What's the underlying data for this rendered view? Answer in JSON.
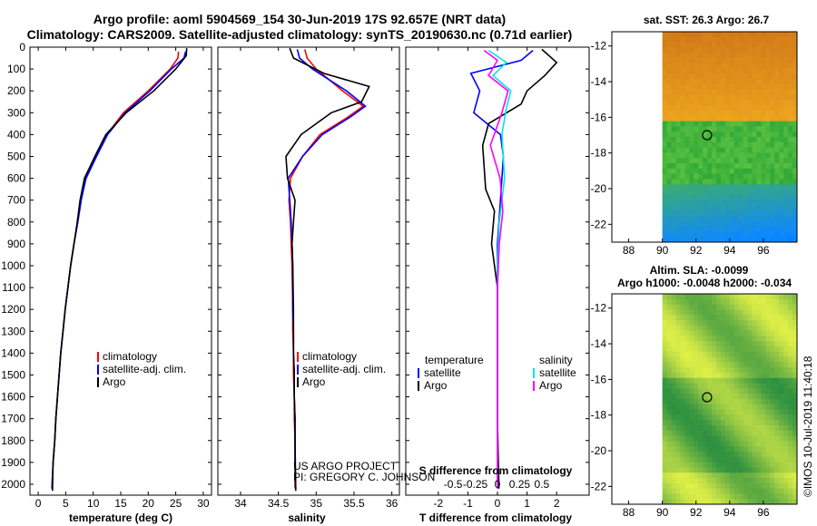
{
  "header": {
    "title_line1": "Argo profile: aoml 5904569_154 30-Jun-2019 17S 92.657E (NRT data)",
    "title_line2": "Climatology: CARS2009. Satellite-adjusted climatology: synTS_20190630.nc (0.71d earlier)"
  },
  "colors": {
    "climatology": "#ff0000",
    "satellite": "#0000ff",
    "argo": "#000000",
    "sal_satellite": "#00e5e5",
    "sal_argo": "#ff00ff"
  },
  "chart_data": [
    {
      "type": "line",
      "name": "temperature",
      "xlabel": "temperature (deg C)",
      "xlim": [
        -1.5,
        31.5
      ],
      "ylim": [
        0,
        2050
      ],
      "xticks": [
        0,
        5,
        10,
        15,
        20,
        25,
        30
      ],
      "yticks": [
        0,
        100,
        200,
        300,
        400,
        500,
        600,
        700,
        800,
        900,
        1000,
        1100,
        1200,
        1300,
        1400,
        1500,
        1600,
        1700,
        1800,
        1900,
        2000
      ],
      "y_reversed": true,
      "legend": [
        "climatology",
        "satellite-adj. clim.",
        "Argo"
      ],
      "series": [
        {
          "name": "climatology",
          "color": "#ff0000",
          "x": [
            25.5,
            25.4,
            24.0,
            20.0,
            15.5,
            12.5,
            10.5,
            8.6,
            7.8,
            7.2,
            6.5,
            5.9,
            5.4,
            4.9,
            4.5,
            4.1,
            3.8,
            3.5,
            3.2,
            3.0,
            2.7,
            2.5
          ],
          "y": [
            20,
            50,
            100,
            200,
            300,
            400,
            500,
            600,
            700,
            800,
            900,
            1000,
            1100,
            1200,
            1300,
            1400,
            1500,
            1600,
            1700,
            1800,
            1900,
            2020
          ]
        },
        {
          "name": "satellite-adj. clim.",
          "color": "#0000ff",
          "x": [
            26.8,
            26.5,
            24.2,
            20.3,
            15.8,
            12.6,
            10.6,
            8.7,
            7.8,
            7.2,
            6.5,
            5.9,
            5.4,
            4.9,
            4.5,
            4.1,
            3.8,
            3.5,
            3.2,
            3.0,
            2.7,
            2.5
          ],
          "y": [
            20,
            50,
            100,
            200,
            300,
            400,
            500,
            600,
            700,
            800,
            900,
            1000,
            1100,
            1200,
            1300,
            1400,
            1500,
            1600,
            1700,
            1800,
            1900,
            2020
          ]
        },
        {
          "name": "Argo",
          "color": "#000000",
          "x": [
            27.0,
            26.9,
            25.0,
            21.0,
            16.0,
            12.3,
            10.3,
            8.4,
            7.6,
            7.1,
            6.5,
            5.9,
            5.4,
            4.9,
            4.5,
            4.1,
            3.8,
            3.5,
            3.2,
            3.0,
            2.7,
            2.6
          ],
          "y": [
            5,
            40,
            100,
            200,
            300,
            400,
            500,
            600,
            700,
            800,
            900,
            1000,
            1100,
            1200,
            1300,
            1400,
            1500,
            1600,
            1700,
            1800,
            1900,
            2030
          ]
        }
      ]
    },
    {
      "type": "line",
      "name": "salinity",
      "xlabel": "salinity",
      "xlim": [
        33.7,
        36.1
      ],
      "ylim": [
        0,
        2050
      ],
      "xticks": [
        34,
        34.5,
        35,
        35.5,
        36
      ],
      "xticklabels": [
        "34",
        "34.5",
        "35",
        "35.5",
        "36"
      ],
      "y_reversed": true,
      "legend": [
        "climatology",
        "satellite-adj. clim.",
        "Argo"
      ],
      "annotation": [
        "US ARGO PROJECT",
        "PI: GREGORY C. JOHNSON"
      ],
      "series": [
        {
          "name": "climatology",
          "color": "#ff0000",
          "x": [
            34.85,
            34.88,
            35.0,
            35.35,
            35.62,
            35.42,
            35.05,
            34.82,
            34.66,
            34.64,
            34.66,
            34.67,
            34.68,
            34.69,
            34.69,
            34.7,
            34.7,
            34.71,
            34.71,
            34.72,
            34.72,
            34.72
          ],
          "y": [
            10,
            50,
            100,
            200,
            270,
            320,
            400,
            500,
            600,
            700,
            800,
            900,
            1000,
            1200,
            1300,
            1400,
            1500,
            1600,
            1700,
            1800,
            1900,
            2020
          ]
        },
        {
          "name": "satellite-adj. clim.",
          "color": "#0000ff",
          "x": [
            34.75,
            34.78,
            34.95,
            35.4,
            35.65,
            35.45,
            35.08,
            34.82,
            34.63,
            34.65,
            34.67,
            34.68,
            34.69,
            34.69,
            34.7,
            34.7,
            34.71,
            34.71,
            34.72,
            34.72,
            34.72,
            34.73
          ],
          "y": [
            10,
            50,
            100,
            200,
            270,
            320,
            400,
            500,
            600,
            700,
            800,
            900,
            1000,
            1200,
            1300,
            1400,
            1500,
            1600,
            1700,
            1800,
            1900,
            2020
          ]
        },
        {
          "name": "Argo",
          "color": "#000000",
          "x": [
            34.65,
            34.7,
            35.1,
            35.7,
            35.6,
            35.2,
            34.8,
            34.6,
            34.62,
            34.72,
            34.7,
            34.68,
            34.69,
            34.7,
            34.7,
            34.71,
            34.71,
            34.72,
            34.72,
            34.73
          ],
          "y": [
            5,
            50,
            120,
            180,
            250,
            300,
            400,
            500,
            600,
            700,
            800,
            900,
            1000,
            1200,
            1400,
            1500,
            1600,
            1700,
            1800,
            2030
          ]
        }
      ]
    },
    {
      "type": "line",
      "name": "difference",
      "xlabel": "T difference from climatology",
      "xlabel_top": "S difference from climatology",
      "xlim": [
        -3.1,
        3.1
      ],
      "ylim": [
        0,
        2050
      ],
      "xticks": [
        -2,
        -1,
        0,
        1,
        2
      ],
      "s_ticks": [
        -0.5,
        -0.25,
        0,
        0.25,
        0.5
      ],
      "s_ticklabels": [
        "-0.5",
        "-0.25",
        "0",
        "0.25",
        "0.5"
      ],
      "s_scale": 3.0,
      "y_reversed": true,
      "legend_left_title": "temperature",
      "legend_right_title": "salinity",
      "legend_left": [
        "satellite",
        "Argo"
      ],
      "legend_right": [
        "satellite",
        "Argo"
      ],
      "series": [
        {
          "name": "T satellite",
          "color": "#0000ff",
          "x": [
            1.2,
            0.8,
            -0.9,
            -0.6,
            -0.8,
            0.1,
            0.2,
            0.1,
            0.0,
            0.0,
            0.0,
            0.0,
            0.0,
            0.0
          ],
          "y": [
            15,
            60,
            120,
            200,
            300,
            400,
            500,
            700,
            900,
            1100,
            1300,
            1500,
            1700,
            2000
          ]
        },
        {
          "name": "T Argo",
          "color": "#000000",
          "x": [
            1.5,
            2.0,
            1.6,
            1.0,
            0.8,
            -0.3,
            -0.5,
            -0.4,
            -0.1,
            -0.2,
            0.0,
            0.0,
            0.0,
            0.05
          ],
          "y": [
            10,
            70,
            130,
            200,
            260,
            350,
            450,
            650,
            750,
            900,
            1100,
            1400,
            1700,
            2020
          ]
        },
        {
          "name": "S satellite",
          "color": "#00e5e5",
          "x": [
            -0.1,
            0.1,
            -0.05,
            0.15,
            0.1,
            0.05,
            0.08,
            0.02,
            0.0,
            0.0,
            0.0,
            0.0,
            0.0,
            0.0
          ],
          "y": [
            15,
            70,
            130,
            200,
            280,
            400,
            600,
            800,
            1000,
            1200,
            1400,
            1600,
            1800,
            2020
          ]
        },
        {
          "name": "S Argo",
          "color": "#ff00ff",
          "x": [
            -0.15,
            0.0,
            -0.1,
            0.12,
            0.05,
            -0.08,
            0.03,
            0.06,
            0.02,
            0.0,
            0.0,
            0.0,
            0.0,
            0.0
          ],
          "y": [
            15,
            60,
            130,
            200,
            300,
            450,
            600,
            750,
            900,
            1100,
            1300,
            1500,
            1700,
            2020
          ]
        }
      ]
    },
    {
      "type": "heatmap",
      "name": "sst_map",
      "title": "sat. SST: 26.3 Argo: 26.7",
      "xticks": [
        88,
        90,
        92,
        94,
        96
      ],
      "yticks": [
        -12,
        -14,
        -16,
        -18,
        -20,
        -22
      ],
      "xlim": [
        87,
        98
      ],
      "ylim": [
        -23,
        -11.2
      ],
      "data_lon_start": 90,
      "marker": {
        "lon": 92.657,
        "lat": -17.0
      },
      "colors": {
        "warm": "#f0a020",
        "mid": "#40b040",
        "cool": "#20a0e0"
      }
    },
    {
      "type": "heatmap",
      "name": "sla_map",
      "title": "Altim. SLA: -0.0099",
      "subtitle": "Argo h1000: -0.0048 h2000: -0.034",
      "xticks": [
        88,
        90,
        92,
        94,
        96
      ],
      "yticks": [
        -12,
        -14,
        -16,
        -18,
        -20,
        -22
      ],
      "xlim": [
        87,
        98
      ],
      "ylim": [
        -23,
        -11.2
      ],
      "data_lon_start": 90,
      "marker": {
        "lon": 92.657,
        "lat": -17.0
      },
      "colors": {
        "light": "#d8f040",
        "dark": "#208040"
      }
    }
  ],
  "footer": {
    "imos_label": "©IMOS 10-Jul-2019 11:40:18"
  }
}
